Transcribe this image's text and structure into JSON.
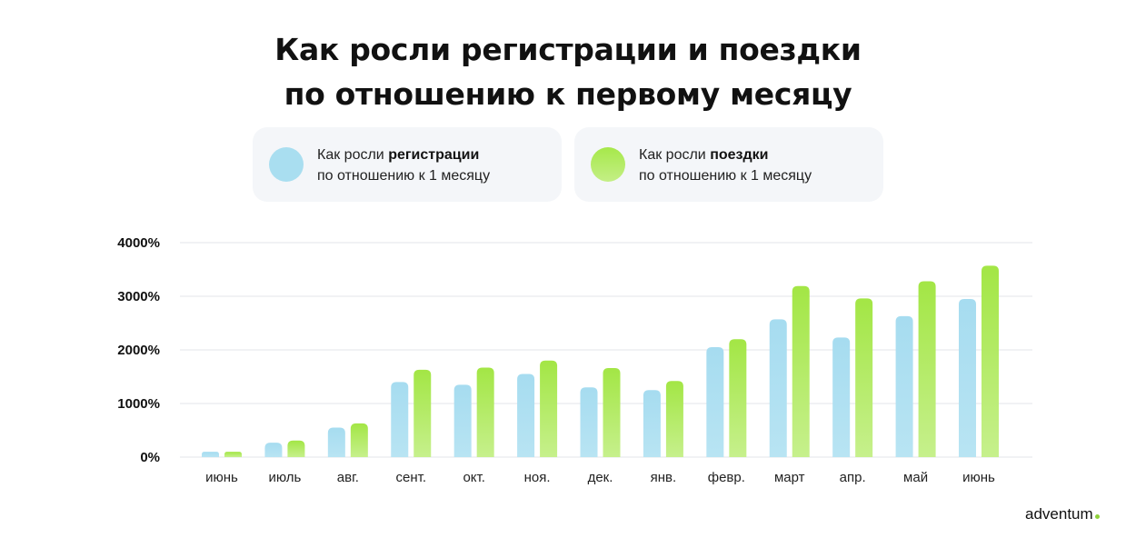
{
  "title": {
    "line1": "Как росли регистрации и поездки",
    "line2": "по отношению к первому месяцу"
  },
  "legend": {
    "registrations": {
      "prefix": "Как росли ",
      "bold": "регистрации",
      "line2": "по отношению к 1 месяцу"
    },
    "trips": {
      "prefix": "Как росли ",
      "bold": "поездки",
      "line2": "по отношению к 1 месяцу"
    }
  },
  "brand": "adventum",
  "colors": {
    "registrations": "#a9def0",
    "trips_top": "#a6e84a",
    "trips_bottom": "#c4ef86",
    "grid": "#e3e5e8"
  },
  "chart_data": {
    "type": "bar",
    "categories": [
      "июнь",
      "июль",
      "авг.",
      "сент.",
      "окт.",
      "ноя.",
      "дек.",
      "янв.",
      "февр.",
      "март",
      "апр.",
      "май",
      "июнь"
    ],
    "series": [
      {
        "name": "регистрации",
        "values": [
          100,
          270,
          550,
          1400,
          1350,
          1550,
          1300,
          1250,
          2050,
          2570,
          2230,
          2630,
          2950
        ]
      },
      {
        "name": "поездки",
        "values": [
          100,
          310,
          630,
          1630,
          1670,
          1800,
          1660,
          1420,
          2200,
          3190,
          2960,
          3280,
          3570
        ]
      }
    ],
    "yticks": [
      "0%",
      "1000%",
      "2000%",
      "3000%",
      "4000%"
    ],
    "ylim": [
      0,
      4000
    ],
    "grid": true,
    "legend": "top"
  }
}
